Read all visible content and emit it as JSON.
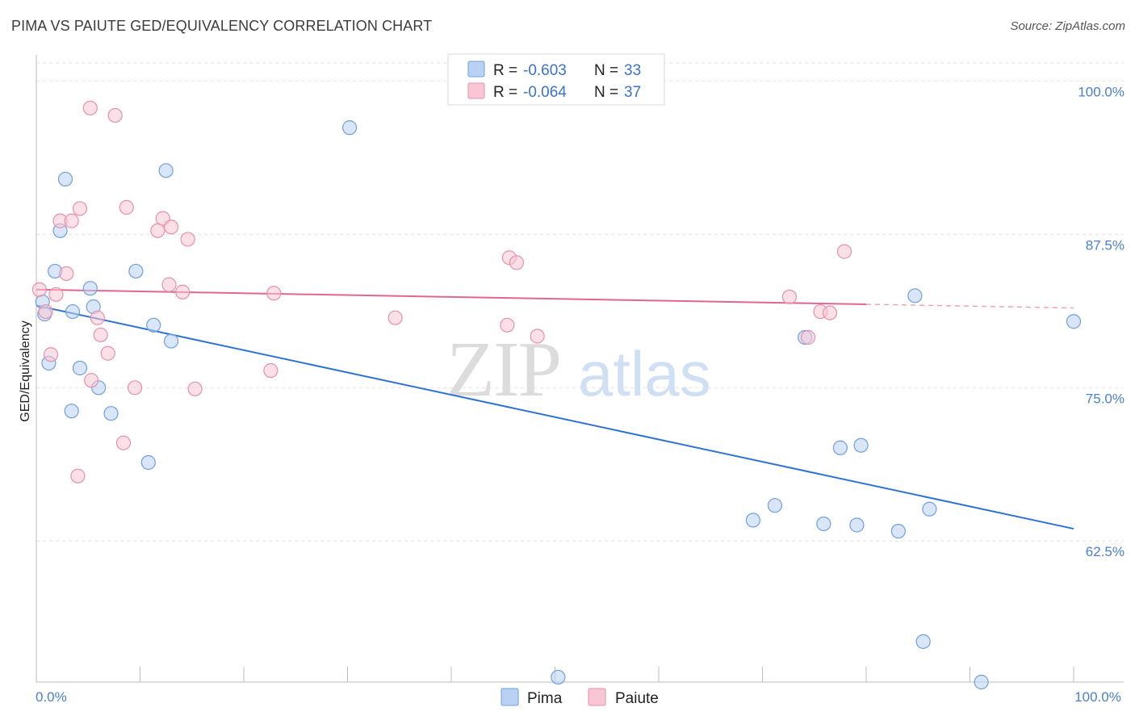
{
  "title": "PIMA VS PAIUTE GED/EQUIVALENCY CORRELATION CHART",
  "source": "Source: ZipAtlas.com",
  "watermark": {
    "zip": "ZIP",
    "atlas": "atlas"
  },
  "colors": {
    "pima_fill": "#b9d2f3",
    "pima_stroke": "#6f9fe0",
    "pima_line": "#2f73d1",
    "paiute_fill": "#f8c6d4",
    "paiute_stroke": "#e890aa",
    "paiute_line": "#e2678f",
    "tick": "#4a7fd0",
    "grid": "#e2e2e2"
  },
  "legend_top": {
    "rows": [
      {
        "series": "pima",
        "r_label": "R = ",
        "r_value": "-0.603",
        "n_label": "N = ",
        "n_value": "33"
      },
      {
        "series": "paiute",
        "r_label": "R = ",
        "r_value": "-0.064",
        "n_label": "N = ",
        "n_value": "37"
      }
    ]
  },
  "chart_data": {
    "type": "scatter",
    "title": "PIMA VS PAIUTE GED/EQUIVALENCY CORRELATION CHART",
    "xlabel": "",
    "ylabel": "GED/Equivalency",
    "xlim": [
      0,
      100
    ],
    "ylim": [
      51,
      102
    ],
    "x_ticks": [
      {
        "value": 0,
        "label": "0.0%"
      },
      {
        "value": 100,
        "label": "100.0%"
      }
    ],
    "y_ticks": [
      {
        "value": 62.5,
        "label": "62.5%"
      },
      {
        "value": 75.0,
        "label": "75.0%"
      },
      {
        "value": 87.5,
        "label": "87.5%"
      },
      {
        "value": 100.0,
        "label": "100.0%"
      }
    ],
    "grid": true,
    "legend_position": "bottom",
    "series": [
      {
        "name": "Pima",
        "key": "pima",
        "points": [
          [
            0.6,
            82.0
          ],
          [
            0.8,
            81.0
          ],
          [
            1.2,
            77.0
          ],
          [
            2.8,
            92.0
          ],
          [
            1.8,
            84.5
          ],
          [
            2.3,
            87.8
          ],
          [
            3.5,
            81.2
          ],
          [
            4.2,
            76.6
          ],
          [
            5.2,
            83.1
          ],
          [
            5.5,
            81.6
          ],
          [
            6.0,
            75.0
          ],
          [
            7.2,
            72.9
          ],
          [
            3.4,
            73.1
          ],
          [
            9.6,
            84.5
          ],
          [
            11.3,
            80.1
          ],
          [
            12.5,
            92.7
          ],
          [
            13.0,
            78.8
          ],
          [
            10.8,
            68.9
          ],
          [
            30.2,
            96.2
          ],
          [
            69.1,
            64.2
          ],
          [
            71.2,
            65.4
          ],
          [
            74.1,
            79.1
          ],
          [
            75.9,
            63.9
          ],
          [
            77.5,
            70.1
          ],
          [
            79.1,
            63.8
          ],
          [
            79.5,
            70.3
          ],
          [
            83.1,
            63.3
          ],
          [
            84.7,
            82.5
          ],
          [
            85.5,
            54.3
          ],
          [
            86.1,
            65.1
          ],
          [
            50.3,
            51.4
          ],
          [
            91.1,
            51.0
          ],
          [
            100.0,
            80.4
          ]
        ],
        "trend": {
          "x0": 0,
          "y0": 81.7,
          "x1": 100,
          "y1": 63.5
        }
      },
      {
        "name": "Paiute",
        "key": "paiute",
        "points": [
          [
            0.3,
            83.0
          ],
          [
            0.9,
            81.2
          ],
          [
            1.4,
            77.7
          ],
          [
            1.9,
            82.6
          ],
          [
            2.3,
            88.6
          ],
          [
            2.9,
            84.3
          ],
          [
            3.4,
            88.6
          ],
          [
            4.2,
            89.6
          ],
          [
            5.3,
            75.6
          ],
          [
            5.9,
            80.7
          ],
          [
            6.2,
            79.3
          ],
          [
            6.9,
            77.8
          ],
          [
            5.2,
            97.8
          ],
          [
            7.6,
            97.2
          ],
          [
            8.4,
            70.5
          ],
          [
            8.7,
            89.7
          ],
          [
            9.5,
            75.0
          ],
          [
            11.7,
            87.8
          ],
          [
            12.2,
            88.8
          ],
          [
            13.0,
            88.1
          ],
          [
            12.8,
            83.4
          ],
          [
            14.1,
            82.8
          ],
          [
            14.6,
            87.1
          ],
          [
            15.3,
            74.9
          ],
          [
            4.0,
            67.8
          ],
          [
            22.6,
            76.4
          ],
          [
            22.9,
            82.7
          ],
          [
            34.6,
            80.7
          ],
          [
            45.4,
            80.1
          ],
          [
            45.6,
            85.6
          ],
          [
            46.3,
            85.2
          ],
          [
            48.3,
            79.2
          ],
          [
            72.6,
            82.4
          ],
          [
            75.6,
            81.2
          ],
          [
            76.5,
            81.1
          ],
          [
            74.4,
            79.1
          ],
          [
            77.9,
            86.1
          ]
        ],
        "trend": {
          "x0": 0,
          "y0": 83.0,
          "x1": 80,
          "y1": 81.8
        },
        "trend_dashed": {
          "x0": 80,
          "y0": 81.8,
          "x1": 100,
          "y1": 81.5
        }
      }
    ]
  }
}
